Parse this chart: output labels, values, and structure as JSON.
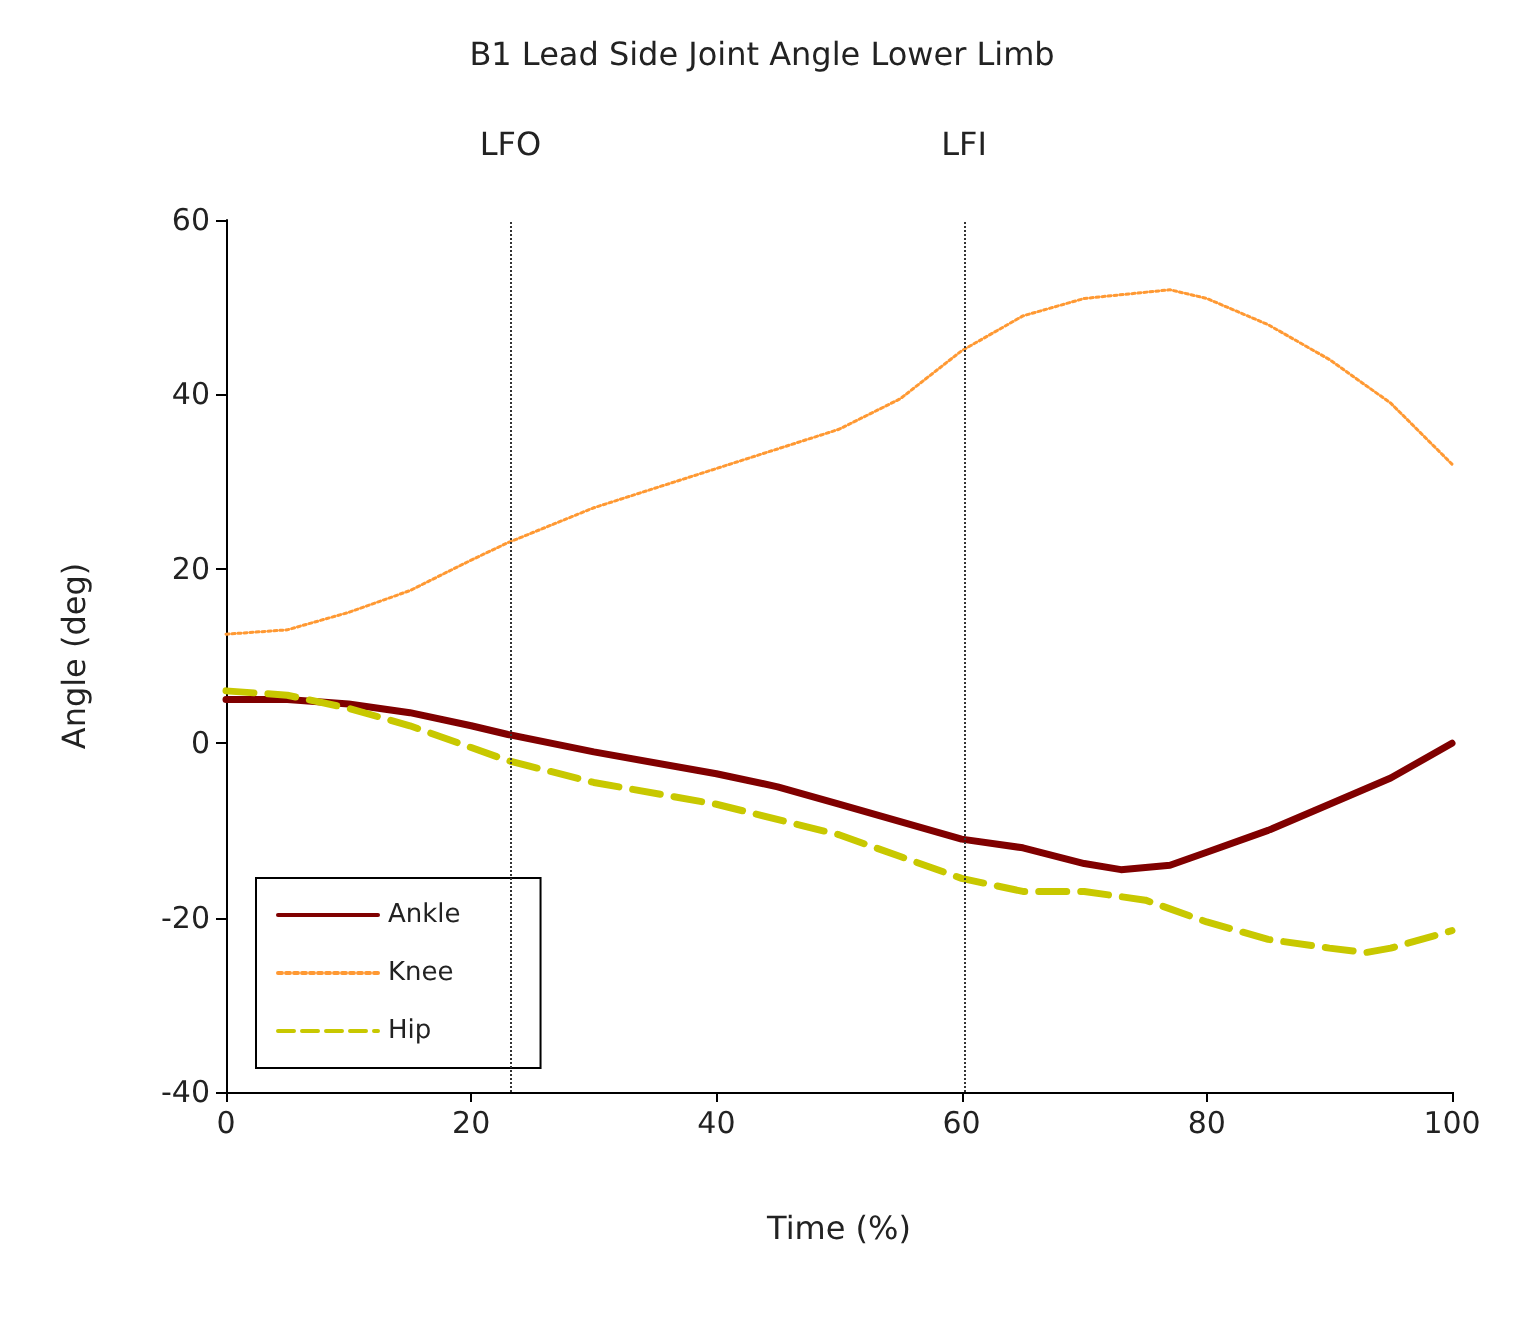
{
  "chart_data": {
    "type": "line",
    "title": "B1 Lead Side Joint Angle Lower Limb",
    "xlabel": "Time (%)",
    "ylabel": "Angle (deg)",
    "xlim": [
      0,
      100
    ],
    "xticks": [
      0,
      20,
      40,
      60,
      80,
      100
    ],
    "ylim": [
      -40,
      60
    ],
    "yticks": [
      -40,
      -20,
      0,
      20,
      40,
      60
    ],
    "grid": false,
    "legend": "bottom left",
    "marker": "none",
    "ref_lines": [
      {
        "axis": "x",
        "value": 23.2,
        "label": "LFO",
        "line_style": "dotted",
        "color": "#333333"
      },
      {
        "axis": "x",
        "value": 60.2,
        "label": "LFI",
        "line_style": "dotted",
        "color": "#333333"
      }
    ],
    "series": [
      {
        "name": "Ankle",
        "color": "#800000",
        "line_style": "solid",
        "x": [
          0,
          5,
          10,
          15,
          20,
          23,
          30,
          40,
          45,
          50,
          55,
          60,
          65,
          70,
          73,
          77,
          80,
          85,
          90,
          95,
          100
        ],
        "values": [
          5,
          5,
          4.5,
          3.5,
          2,
          1,
          -1,
          -3.5,
          -5,
          -7,
          -9,
          -11,
          -12,
          -13.8,
          -14.5,
          -14,
          -12.5,
          -10,
          -7,
          -4,
          0
        ]
      },
      {
        "name": "Knee",
        "color": "#ff9933",
        "line_style": "dotted",
        "x": [
          0,
          5,
          10,
          15,
          20,
          23,
          30,
          40,
          50,
          55,
          60,
          65,
          70,
          77,
          80,
          85,
          90,
          95,
          100
        ],
        "values": [
          12.5,
          13,
          15,
          17.5,
          21,
          23,
          27,
          31.5,
          36,
          39.5,
          45,
          49,
          51,
          52,
          51,
          48,
          44,
          39,
          32
        ]
      },
      {
        "name": "Hip",
        "color": "#c8c800",
        "line_style": "dashed",
        "x": [
          0,
          5,
          10,
          15,
          20,
          23,
          30,
          40,
          50,
          55,
          60,
          65,
          70,
          75,
          80,
          85,
          90,
          93,
          95,
          100
        ],
        "values": [
          6,
          5.5,
          4,
          2,
          -0.5,
          -2,
          -4.5,
          -7,
          -10.5,
          -13,
          -15.5,
          -17,
          -17,
          -18,
          -20.5,
          -22.5,
          -23.5,
          -24,
          -23.5,
          -21.5
        ]
      }
    ]
  }
}
